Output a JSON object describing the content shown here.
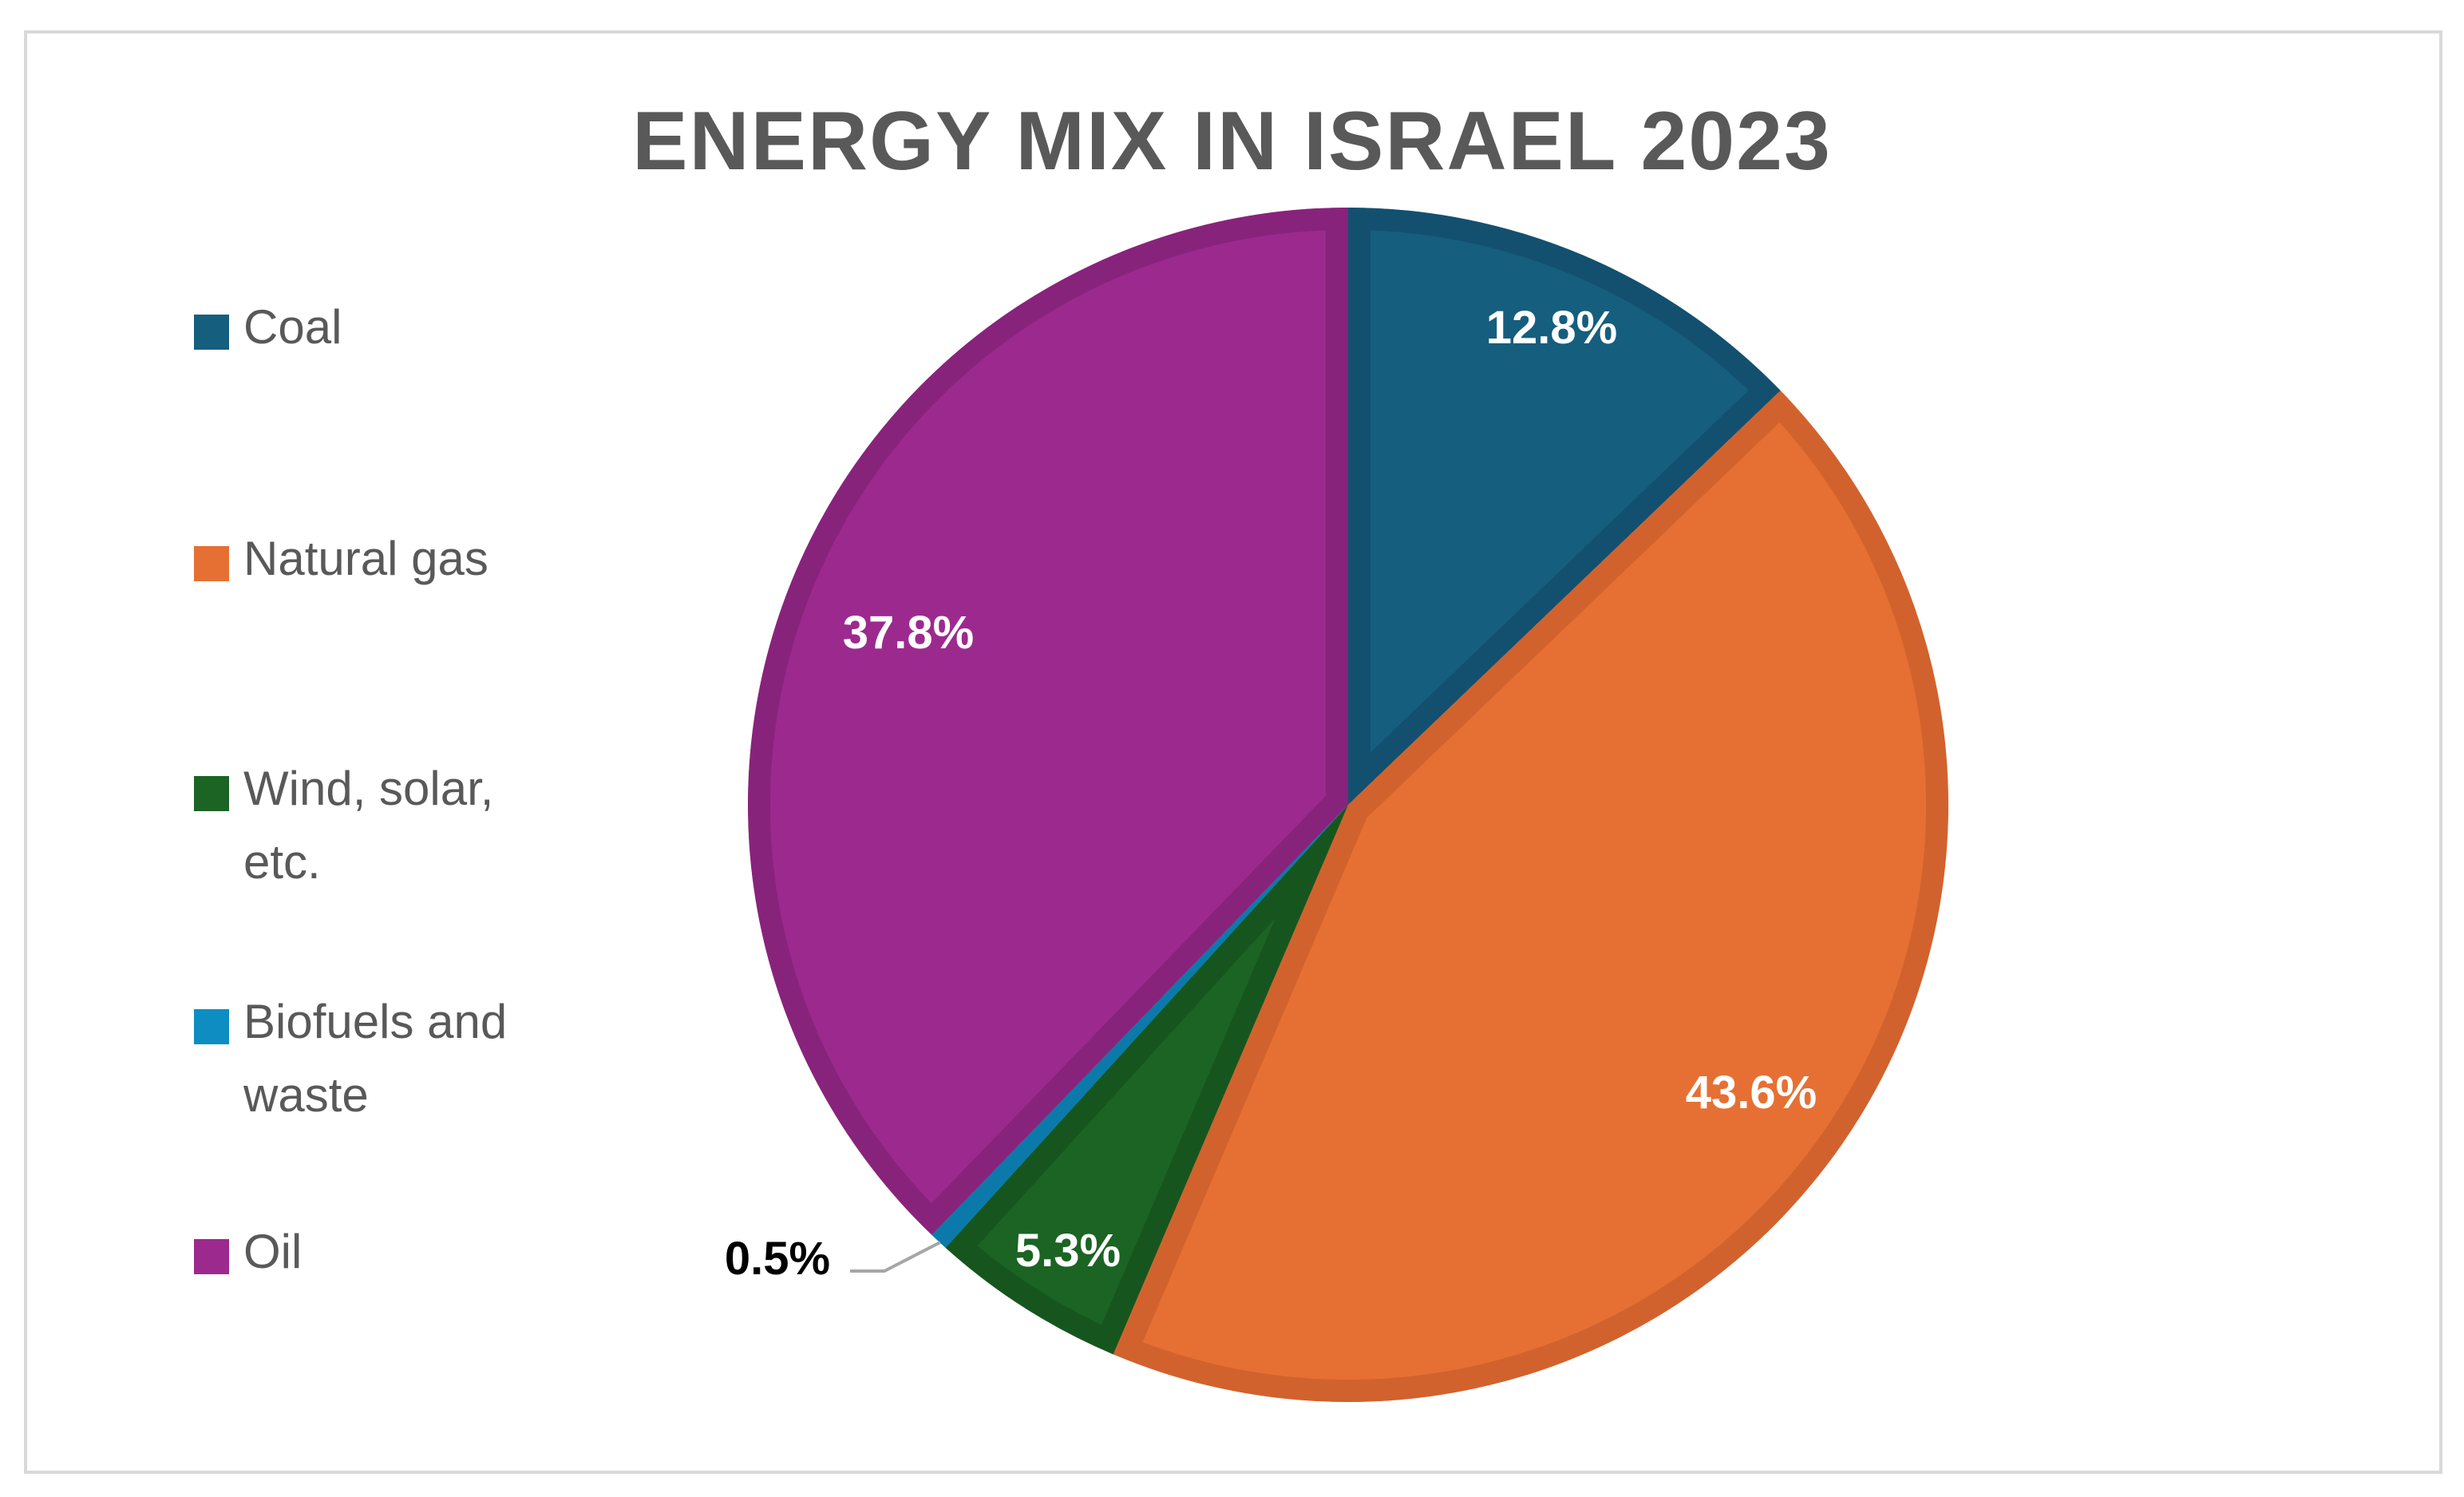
{
  "chart_data": {
    "type": "pie",
    "title": "ENERGY MIX IN ISRAEL 2023",
    "legend_position": "left",
    "slices": [
      {
        "label": "Coal",
        "value": 12.8,
        "display": "12.8%",
        "color": "#165E7E",
        "edge": "#135070",
        "label_color": "#ffffff"
      },
      {
        "label": "Natural gas",
        "value": 43.6,
        "display": "43.6%",
        "color": "#E67033",
        "edge": "#D2622D",
        "label_color": "#ffffff"
      },
      {
        "label": "Wind, solar, etc.",
        "value": 5.3,
        "display": "5.3%",
        "color": "#1B6424",
        "edge": "#16561E",
        "label_color": "#ffffff"
      },
      {
        "label": "Biofuels and waste",
        "value": 0.5,
        "display": "0.5%",
        "color": "#0E8DC3",
        "edge": "#0B7AAA",
        "label_color": "#000000"
      },
      {
        "label": "Oil",
        "value": 37.8,
        "display": "37.8%",
        "color": "#9C2A8E",
        "edge": "#88237C",
        "label_color": "#ffffff"
      }
    ]
  }
}
